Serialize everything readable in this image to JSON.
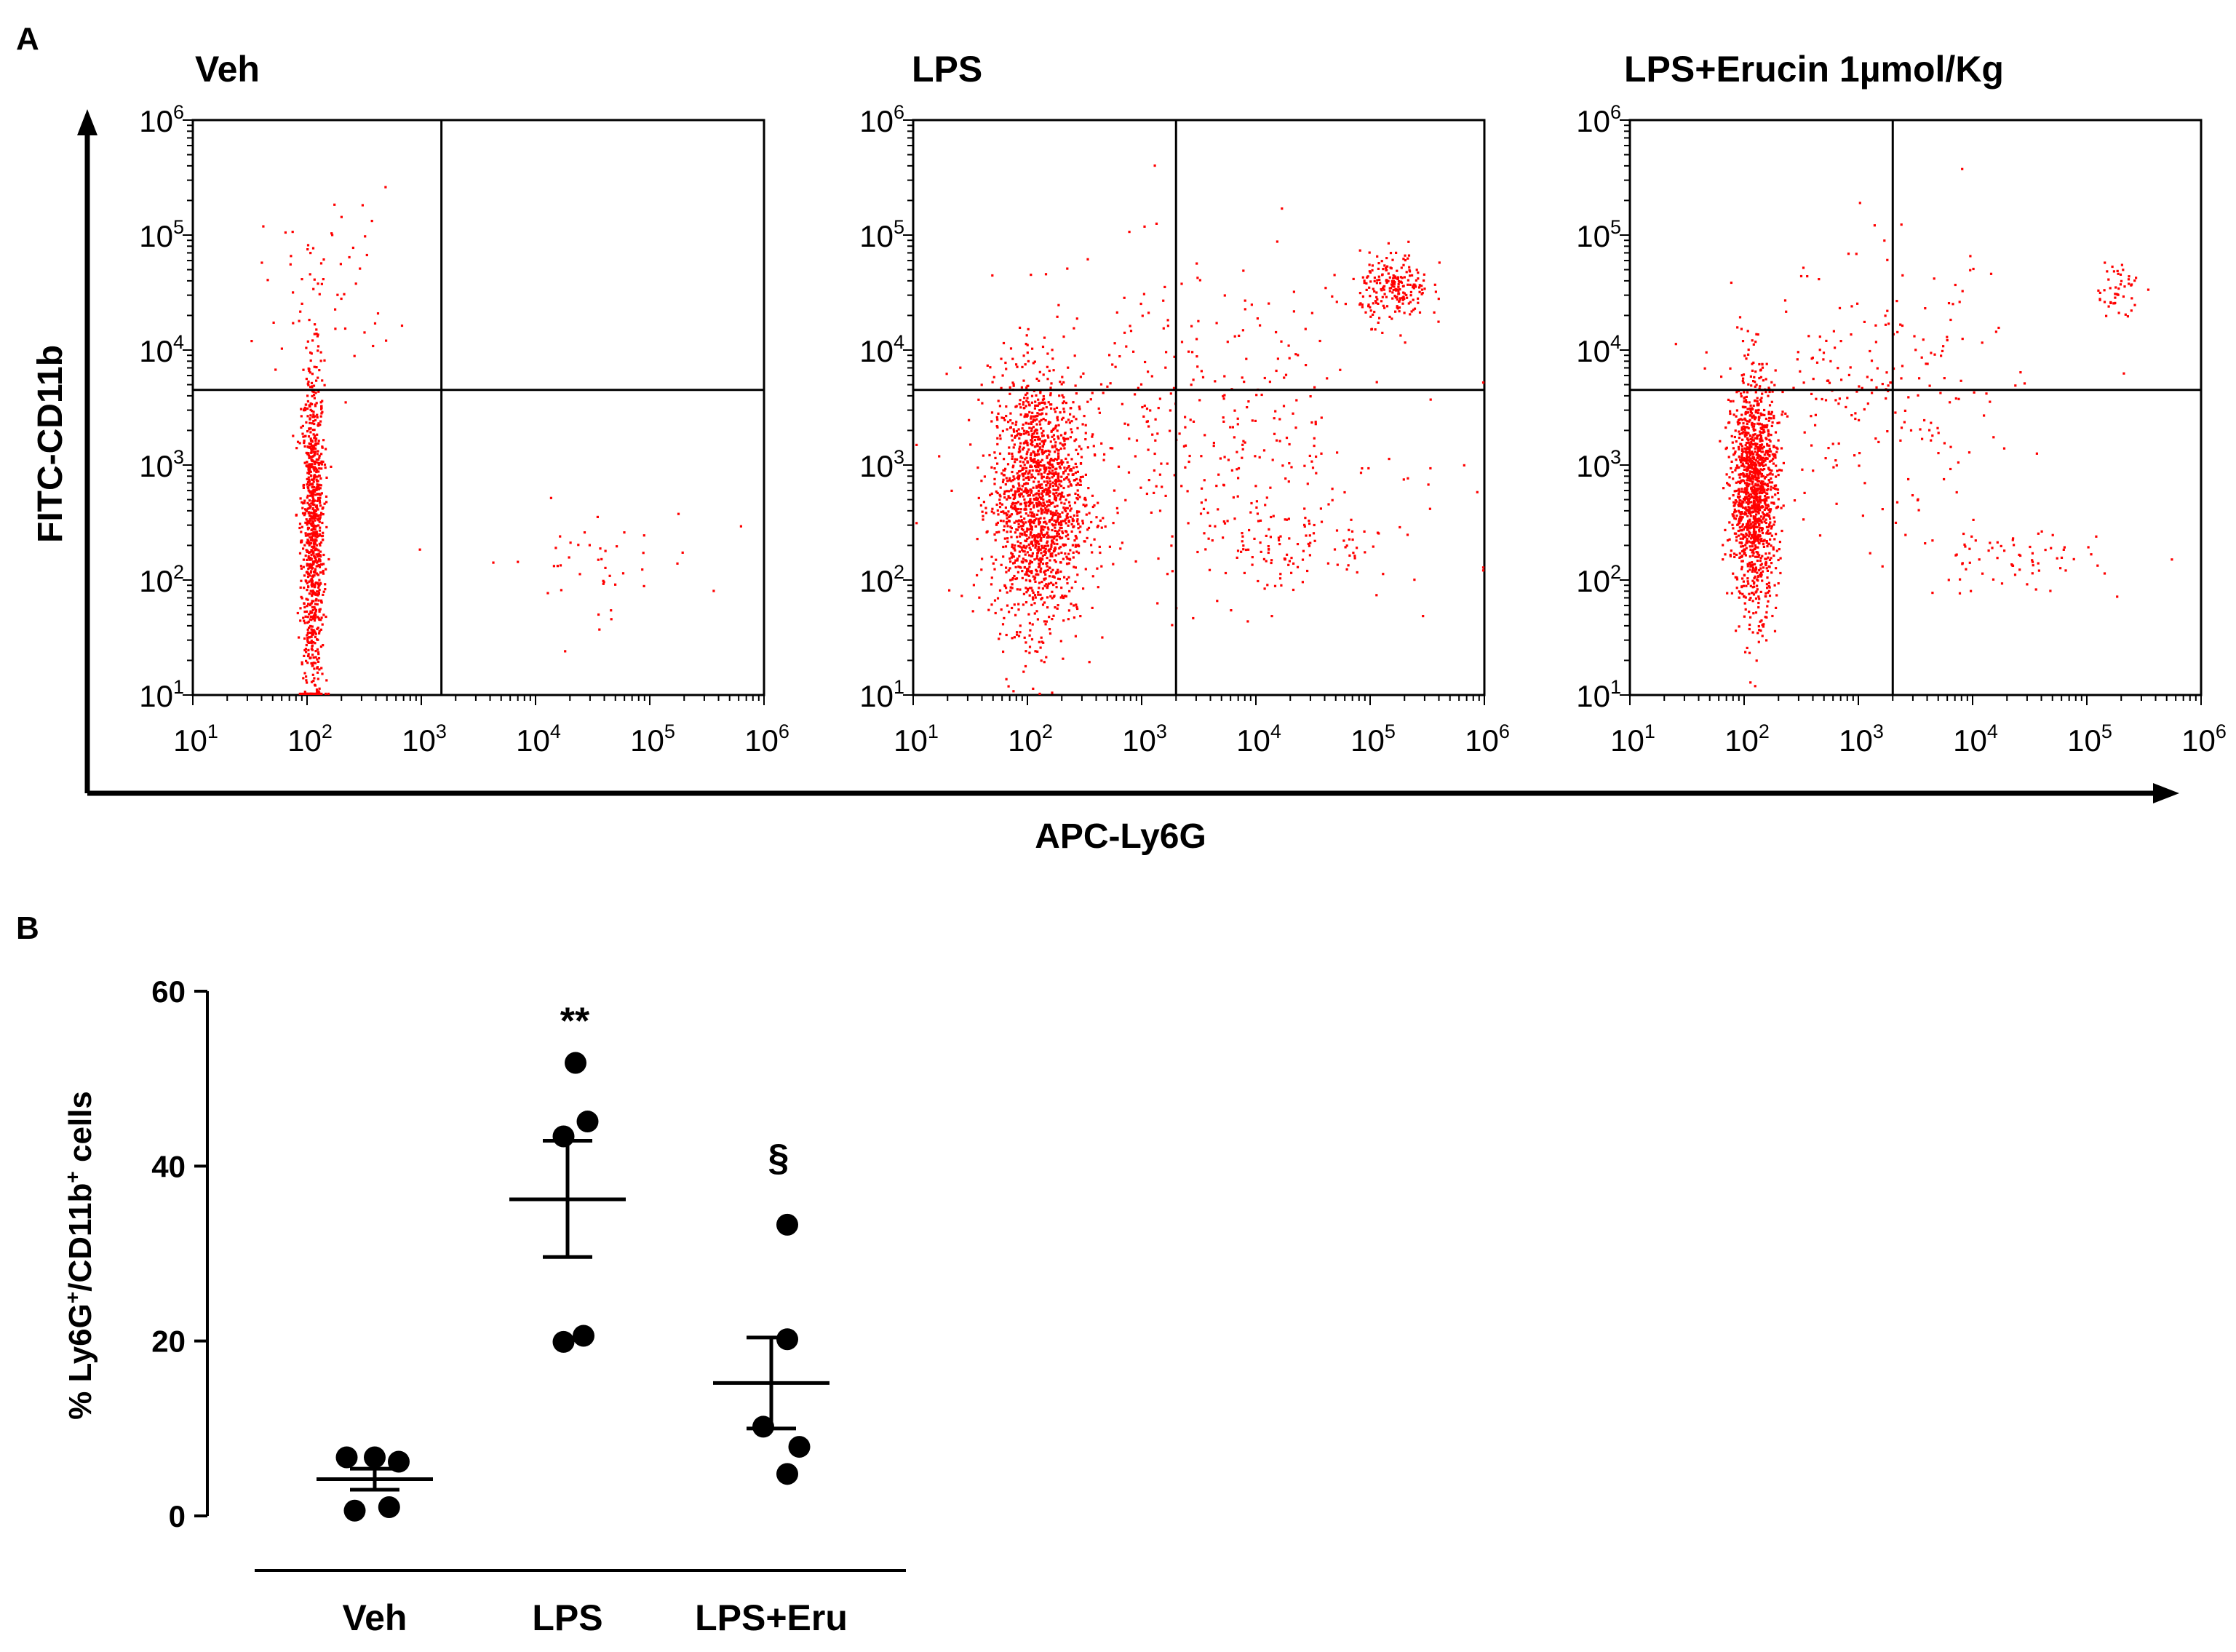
{
  "panel_a": {
    "label": "A",
    "x_axis_title": "APC-Ly6G",
    "y_axis_title": "FITC-CD11b",
    "chart_data": [
      {
        "type": "scatter",
        "title": "Veh",
        "xscale": "log",
        "yscale": "log",
        "xlim": [
          10,
          1000000
        ],
        "ylim": [
          10,
          1000000
        ],
        "xtick_labels": [
          "10^1",
          "10^2",
          "10^3",
          "10^4",
          "10^5",
          "10^6"
        ],
        "ytick_labels": [
          "10^1",
          "10^2",
          "10^3",
          "10^4",
          "10^5",
          "10^6"
        ],
        "gate": {
          "x": 1500,
          "y": 4500
        },
        "dot_color": "#ff0000",
        "populations": [
          {
            "name": "main",
            "center": [
              110,
              250
            ],
            "spread_decades": [
              0.05,
              0.75
            ],
            "count": 900
          },
          {
            "name": "upper-scatter",
            "center": [
              150,
              40000
            ],
            "spread_decades": [
              0.3,
              0.4
            ],
            "count": 60
          },
          {
            "name": "low-right",
            "center": [
              30000,
              150
            ],
            "spread_decades": [
              0.5,
              0.25
            ],
            "count": 45
          }
        ]
      },
      {
        "type": "scatter",
        "title": "LPS",
        "xscale": "log",
        "yscale": "log",
        "xlim": [
          10,
          1000000
        ],
        "ylim": [
          10,
          1000000
        ],
        "xtick_labels": [
          "10^1",
          "10^2",
          "10^3",
          "10^4",
          "10^5",
          "10^6"
        ],
        "ytick_labels": [
          "10^1",
          "10^2",
          "10^3",
          "10^4",
          "10^5",
          "10^6"
        ],
        "gate": {
          "x": 2000,
          "y": 4500
        },
        "dot_color": "#ff0000",
        "populations": [
          {
            "name": "main",
            "center": [
              120,
              500
            ],
            "spread_decades": [
              0.2,
              0.55
            ],
            "count": 1600
          },
          {
            "name": "Ly6G+CD11b+",
            "center": [
              160000,
              35000
            ],
            "spread_decades": [
              0.15,
              0.15
            ],
            "count": 220
          },
          {
            "name": "diffuse",
            "center": [
              3000,
              2000
            ],
            "spread_decades": [
              0.9,
              0.7
            ],
            "count": 380
          },
          {
            "name": "low-right",
            "center": [
              20000,
              200
            ],
            "spread_decades": [
              0.45,
              0.2
            ],
            "count": 110
          }
        ]
      },
      {
        "type": "scatter",
        "title": "LPS+Erucin 1µmol/Kg",
        "xscale": "log",
        "yscale": "log",
        "xlim": [
          10,
          1000000
        ],
        "ylim": [
          10,
          1000000
        ],
        "xtick_labels": [
          "10^1",
          "10^2",
          "10^3",
          "10^4",
          "10^5",
          "10^6"
        ],
        "ytick_labels": [
          "10^1",
          "10^2",
          "10^3",
          "10^4",
          "10^5",
          "10^6"
        ],
        "gate": {
          "x": 2000,
          "y": 4500
        },
        "dot_color": "#ff0000",
        "populations": [
          {
            "name": "main",
            "center": [
              120,
              600
            ],
            "spread_decades": [
              0.1,
              0.5
            ],
            "count": 1300
          },
          {
            "name": "Ly6G+CD11b+",
            "center": [
              180000,
              35000
            ],
            "spread_decades": [
              0.1,
              0.12
            ],
            "count": 50
          },
          {
            "name": "diffuse",
            "center": [
              1500,
              4000
            ],
            "spread_decades": [
              0.6,
              0.6
            ],
            "count": 220
          },
          {
            "name": "low-right",
            "center": [
              20000,
              150
            ],
            "spread_decades": [
              0.4,
              0.15
            ],
            "count": 70
          }
        ]
      }
    ]
  },
  "panel_b": {
    "label": "B",
    "chart_data": {
      "type": "scatter",
      "title": "",
      "xlabel": "",
      "ylabel_parts": [
        "% Ly6G",
        "+",
        "/CD11b",
        "+",
        " cells"
      ],
      "ylim": [
        0,
        60
      ],
      "yticks": [
        "0",
        "20",
        "40",
        "60"
      ],
      "categories": [
        "Veh",
        "LPS",
        "LPS+Eru"
      ],
      "series": [
        {
          "name": "Veh",
          "points": [
            {
              "x": -0.35,
              "y": 6.7
            },
            {
              "x": 0.0,
              "y": 6.7
            },
            {
              "x": 0.3,
              "y": 6.2
            },
            {
              "x": -0.25,
              "y": 0.6
            },
            {
              "x": 0.18,
              "y": 1.0
            }
          ],
          "mean": 4.2,
          "sem_low": 3.0,
          "sem_high": 5.4,
          "annotation": ""
        },
        {
          "name": "LPS",
          "points": [
            {
              "x": 0.1,
              "y": 51.8
            },
            {
              "x": -0.05,
              "y": 43.4
            },
            {
              "x": 0.25,
              "y": 45.1
            },
            {
              "x": -0.05,
              "y": 19.9
            },
            {
              "x": 0.2,
              "y": 20.6
            }
          ],
          "mean": 36.2,
          "sem_low": 29.6,
          "sem_high": 42.9,
          "annotation": "**"
        },
        {
          "name": "LPS+Eru",
          "points": [
            {
              "x": 0.2,
              "y": 33.3
            },
            {
              "x": 0.2,
              "y": 20.2
            },
            {
              "x": -0.1,
              "y": 10.2
            },
            {
              "x": 0.35,
              "y": 7.9
            },
            {
              "x": 0.2,
              "y": 4.8
            }
          ],
          "mean": 15.2,
          "sem_low": 10.0,
          "sem_high": 20.4,
          "annotation": "§"
        }
      ]
    }
  }
}
